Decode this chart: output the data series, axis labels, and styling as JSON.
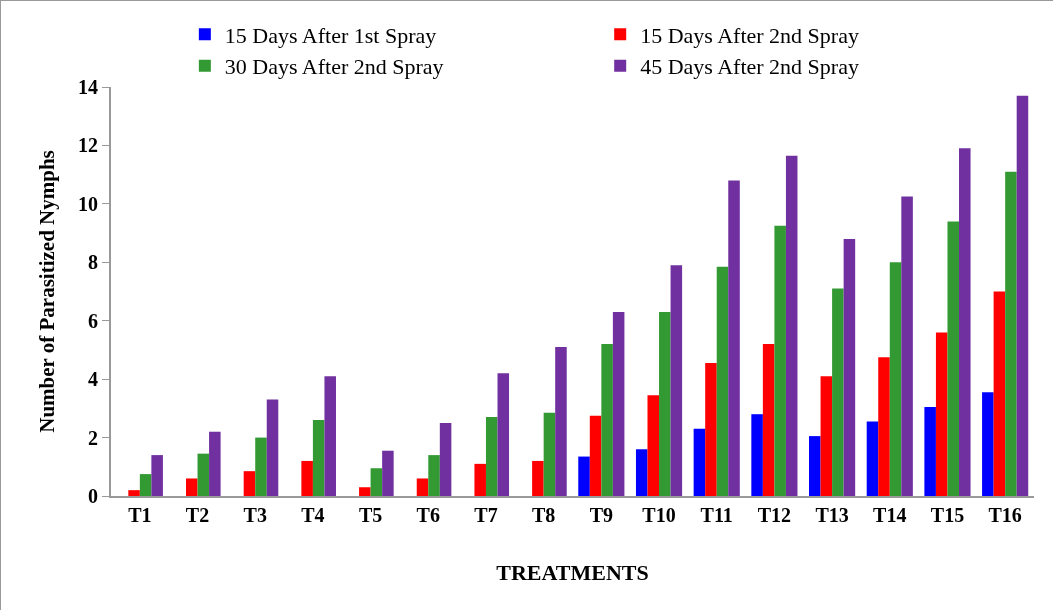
{
  "chart_data": {
    "type": "bar",
    "xlabel": "TREATMENTS",
    "ylabel": "Number of Parasitized Nymphs",
    "categories": [
      "T1",
      "T2",
      "T3",
      "T4",
      "T5",
      "T6",
      "T7",
      "T8",
      "T9",
      "T10",
      "T11",
      "T12",
      "T13",
      "T14",
      "T15",
      "T16"
    ],
    "series": [
      {
        "name": "15 Days After 1st Spray",
        "color": "#0000ff",
        "values": [
          0,
          0,
          0,
          0,
          0,
          0,
          0,
          0,
          1.35,
          1.6,
          2.3,
          2.8,
          2.05,
          2.55,
          3.05,
          3.55
        ]
      },
      {
        "name": "15 Days After 2nd Spray",
        "color": "#ff0000",
        "values": [
          0.2,
          0.6,
          0.85,
          1.2,
          0.3,
          0.6,
          1.1,
          1.2,
          2.75,
          3.45,
          4.55,
          5.2,
          4.1,
          4.75,
          5.6,
          7.0
        ]
      },
      {
        "name": "30 Days After 2nd Spray",
        "color": "#339933",
        "values": [
          0.75,
          1.45,
          2.0,
          2.6,
          0.95,
          1.4,
          2.7,
          2.85,
          5.2,
          6.3,
          7.85,
          9.25,
          7.1,
          8.0,
          9.4,
          11.1
        ]
      },
      {
        "name": "45 Days After 2nd Spray",
        "color": "#7030a0",
        "values": [
          1.4,
          2.2,
          3.3,
          4.1,
          1.55,
          2.5,
          4.2,
          5.1,
          6.3,
          7.9,
          10.8,
          11.65,
          8.8,
          10.25,
          11.9,
          13.7
        ]
      }
    ],
    "ylim": [
      0,
      14
    ],
    "yticks": [
      0,
      2,
      4,
      6,
      8,
      10,
      12,
      14
    ],
    "grid": false,
    "legend": "top"
  }
}
